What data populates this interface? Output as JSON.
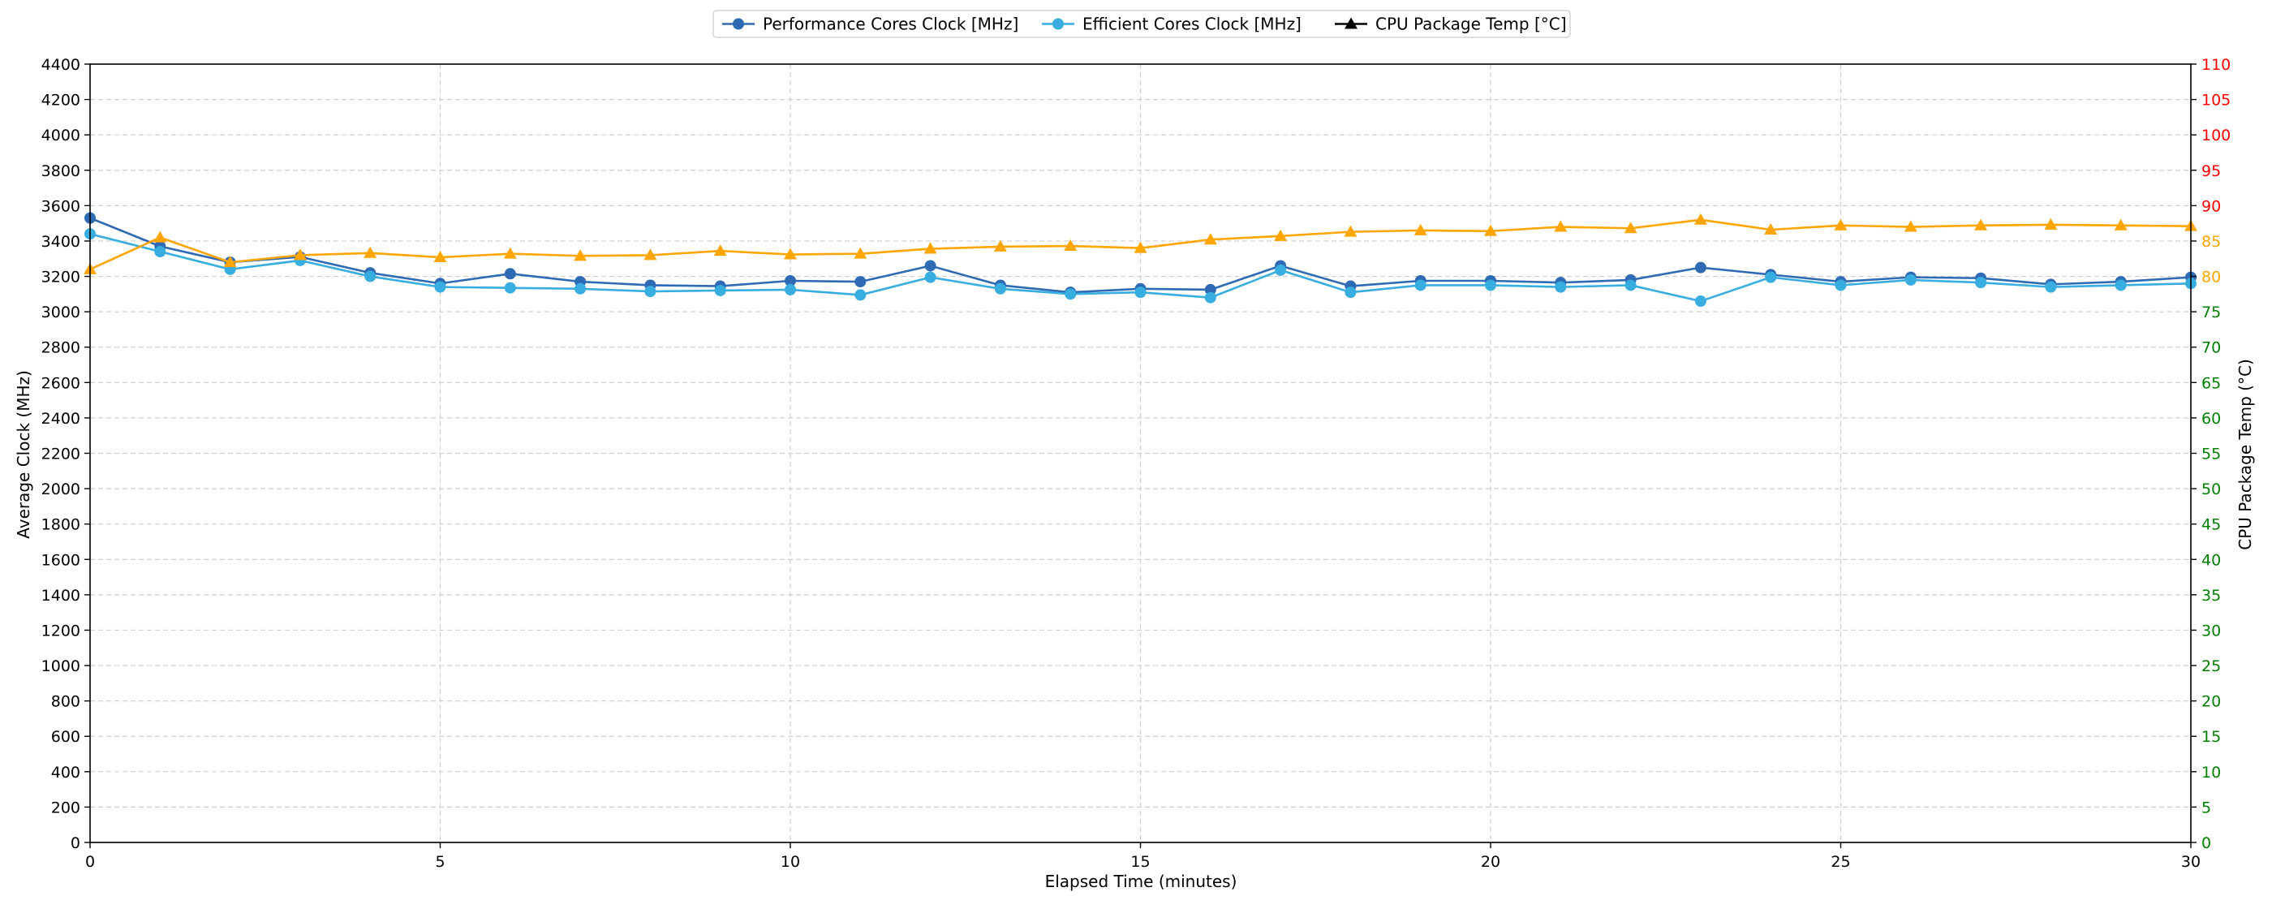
{
  "chart_data": {
    "type": "line",
    "xlabel": "Elapsed Time (minutes)",
    "ylabel": "Average Clock (MHz)",
    "y2label": "CPU Package Temp (°C)",
    "xlim": [
      0,
      30
    ],
    "ylim": [
      0,
      4400
    ],
    "y2lim": [
      0,
      110
    ],
    "x_ticks": [
      0,
      5,
      10,
      15,
      20,
      25,
      30
    ],
    "y_ticks": [
      0,
      200,
      400,
      600,
      800,
      1000,
      1200,
      1400,
      1600,
      1800,
      2000,
      2200,
      2400,
      2600,
      2800,
      3000,
      3200,
      3400,
      3600,
      3800,
      4000,
      4200,
      4400
    ],
    "y2_ticks": [
      0,
      5,
      10,
      15,
      20,
      25,
      30,
      35,
      40,
      45,
      50,
      55,
      60,
      65,
      70,
      75,
      80,
      85,
      90,
      95,
      100,
      105,
      110
    ],
    "y2_tick_colors": {
      "normal": "#008000",
      "warm": "#FFA500",
      "hot": "#FF0000",
      "warm_from": 80,
      "hot_from": 90
    },
    "grid": true,
    "legend_position": "top-center",
    "x": [
      0,
      1,
      2,
      3,
      4,
      5,
      6,
      7,
      8,
      9,
      10,
      11,
      12,
      13,
      14,
      15,
      16,
      17,
      18,
      19,
      20,
      21,
      22,
      23,
      24,
      25,
      26,
      27,
      28,
      29,
      30
    ],
    "series": [
      {
        "name": "Performance Cores Clock [MHz]",
        "axis": "left",
        "color": "#2E6BB4",
        "marker": "circle",
        "values": [
          3530,
          3370,
          3280,
          3310,
          3220,
          3160,
          3215,
          3170,
          3150,
          3145,
          3175,
          3170,
          3260,
          3150,
          3110,
          3130,
          3125,
          3260,
          3145,
          3175,
          3175,
          3165,
          3180,
          3250,
          3210,
          3170,
          3195,
          3190,
          3155,
          3170,
          3195
        ]
      },
      {
        "name": "Efficient Cores Clock [MHz]",
        "axis": "left",
        "color": "#38ADE0",
        "marker": "circle",
        "values": [
          3440,
          3340,
          3240,
          3290,
          3200,
          3140,
          3135,
          3130,
          3115,
          3120,
          3125,
          3095,
          3195,
          3130,
          3100,
          3110,
          3080,
          3235,
          3110,
          3150,
          3150,
          3140,
          3150,
          3060,
          3195,
          3150,
          3180,
          3165,
          3140,
          3150,
          3160
        ]
      },
      {
        "name": "CPU Package Temp [°C]",
        "axis": "right",
        "color": "#FFA500",
        "legend_color": "#000000",
        "marker": "triangle",
        "values": [
          81,
          85.5,
          82,
          83,
          83.3,
          82.7,
          83.2,
          82.9,
          83,
          83.6,
          83.1,
          83.2,
          83.9,
          84.2,
          84.3,
          84.0,
          85.2,
          85.7,
          86.3,
          86.5,
          86.4,
          87.0,
          86.8,
          88.0,
          86.6,
          87.2,
          87.0,
          87.2,
          87.3,
          87.2,
          87.1
        ]
      }
    ]
  }
}
